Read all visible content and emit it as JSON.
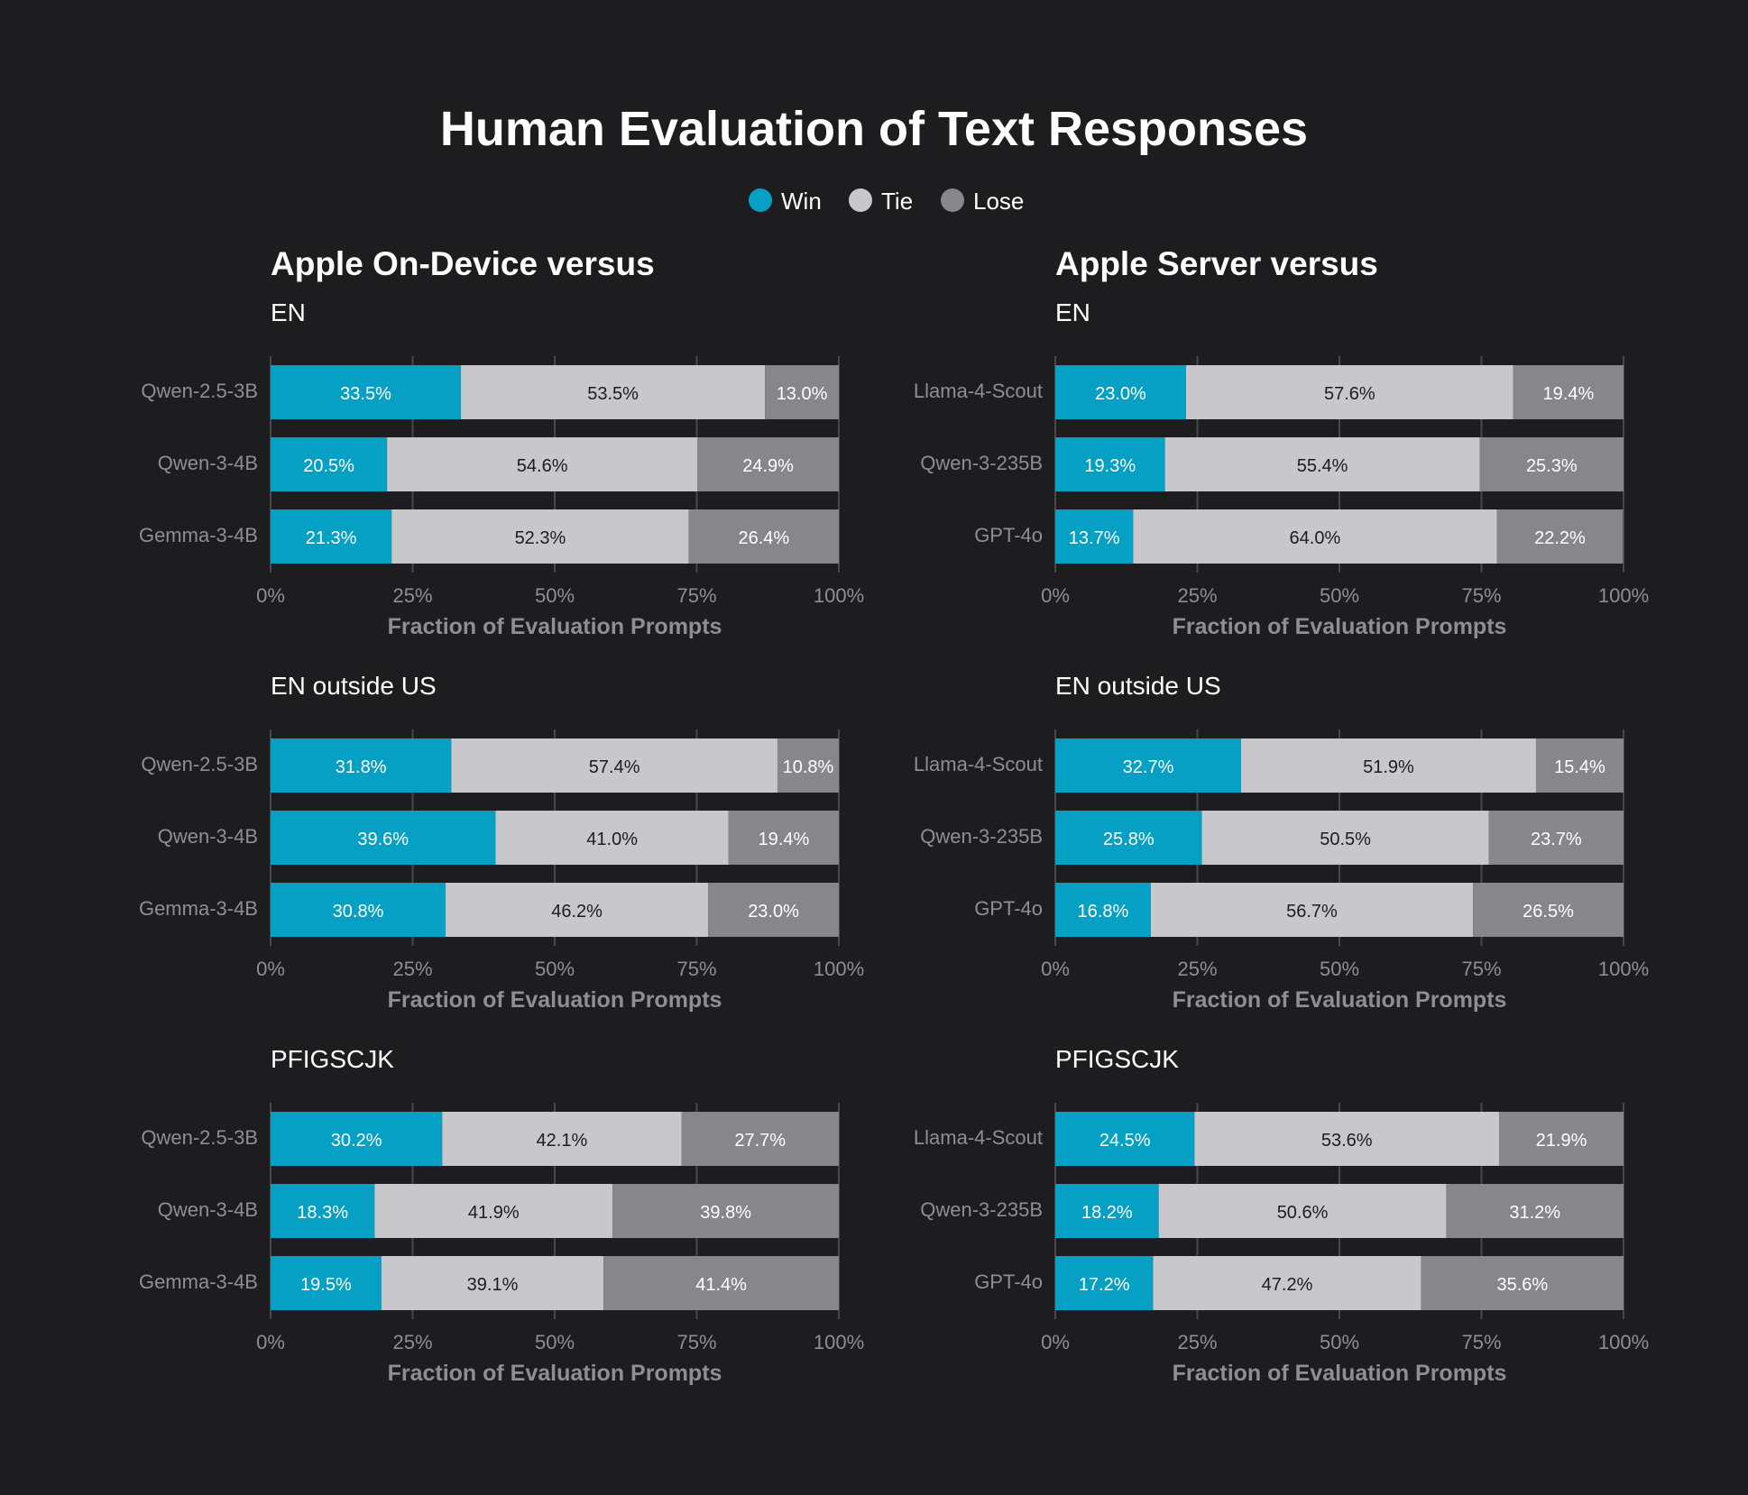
{
  "title": "Human Evaluation of Text Responses",
  "legend": [
    {
      "label": "Win",
      "color": "#06a0c4"
    },
    {
      "label": "Tie",
      "color": "#c8c8cc"
    },
    {
      "label": "Lose",
      "color": "#87878b"
    }
  ],
  "colors": {
    "background": "#1d1d1f",
    "win": "#06a0c4",
    "tie": "#c8c8cc",
    "lose": "#87878b",
    "title_text": "#ffffff",
    "axis_text": "#8e8e93",
    "grid": "#48484a"
  },
  "columns": [
    {
      "heading": "Apple On-Device versus"
    },
    {
      "heading": "Apple Server versus"
    }
  ],
  "chart_data": [
    {
      "type": "bar",
      "stacked": true,
      "orientation": "horizontal",
      "group": "Apple On-Device versus",
      "title": "EN",
      "xlabel": "Fraction of Evaluation Prompts",
      "xlim": [
        0,
        100
      ],
      "xticks": [
        "0%",
        "25%",
        "50%",
        "75%",
        "100%"
      ],
      "categories": [
        "Qwen-2.5-3B",
        "Qwen-3-4B",
        "Gemma-3-4B"
      ],
      "series": [
        {
          "name": "Win",
          "values": [
            33.5,
            20.5,
            21.3
          ]
        },
        {
          "name": "Tie",
          "values": [
            53.5,
            54.6,
            52.3
          ]
        },
        {
          "name": "Lose",
          "values": [
            13.0,
            24.9,
            26.4
          ]
        }
      ]
    },
    {
      "type": "bar",
      "stacked": true,
      "orientation": "horizontal",
      "group": "Apple Server versus",
      "title": "EN",
      "xlabel": "Fraction of Evaluation Prompts",
      "xlim": [
        0,
        100
      ],
      "xticks": [
        "0%",
        "25%",
        "50%",
        "75%",
        "100%"
      ],
      "categories": [
        "Llama-4-Scout",
        "Qwen-3-235B",
        "GPT-4o"
      ],
      "series": [
        {
          "name": "Win",
          "values": [
            23.0,
            19.3,
            13.7
          ]
        },
        {
          "name": "Tie",
          "values": [
            57.6,
            55.4,
            64.0
          ]
        },
        {
          "name": "Lose",
          "values": [
            19.4,
            25.3,
            22.2
          ]
        }
      ]
    },
    {
      "type": "bar",
      "stacked": true,
      "orientation": "horizontal",
      "group": "Apple On-Device versus",
      "title": "EN outside US",
      "xlabel": "Fraction of Evaluation Prompts",
      "xlim": [
        0,
        100
      ],
      "xticks": [
        "0%",
        "25%",
        "50%",
        "75%",
        "100%"
      ],
      "categories": [
        "Qwen-2.5-3B",
        "Qwen-3-4B",
        "Gemma-3-4B"
      ],
      "series": [
        {
          "name": "Win",
          "values": [
            31.8,
            39.6,
            30.8
          ]
        },
        {
          "name": "Tie",
          "values": [
            57.4,
            41.0,
            46.2
          ]
        },
        {
          "name": "Lose",
          "values": [
            10.8,
            19.4,
            23.0
          ]
        }
      ]
    },
    {
      "type": "bar",
      "stacked": true,
      "orientation": "horizontal",
      "group": "Apple Server versus",
      "title": "EN outside US",
      "xlabel": "Fraction of Evaluation Prompts",
      "xlim": [
        0,
        100
      ],
      "xticks": [
        "0%",
        "25%",
        "50%",
        "75%",
        "100%"
      ],
      "categories": [
        "Llama-4-Scout",
        "Qwen-3-235B",
        "GPT-4o"
      ],
      "series": [
        {
          "name": "Win",
          "values": [
            32.7,
            25.8,
            16.8
          ]
        },
        {
          "name": "Tie",
          "values": [
            51.9,
            50.5,
            56.7
          ]
        },
        {
          "name": "Lose",
          "values": [
            15.4,
            23.7,
            26.5
          ]
        }
      ]
    },
    {
      "type": "bar",
      "stacked": true,
      "orientation": "horizontal",
      "group": "Apple On-Device versus",
      "title": "PFIGSCJK",
      "xlabel": "Fraction of Evaluation Prompts",
      "xlim": [
        0,
        100
      ],
      "xticks": [
        "0%",
        "25%",
        "50%",
        "75%",
        "100%"
      ],
      "categories": [
        "Qwen-2.5-3B",
        "Qwen-3-4B",
        "Gemma-3-4B"
      ],
      "series": [
        {
          "name": "Win",
          "values": [
            30.2,
            18.3,
            19.5
          ]
        },
        {
          "name": "Tie",
          "values": [
            42.1,
            41.9,
            39.1
          ]
        },
        {
          "name": "Lose",
          "values": [
            27.7,
            39.8,
            41.4
          ]
        }
      ]
    },
    {
      "type": "bar",
      "stacked": true,
      "orientation": "horizontal",
      "group": "Apple Server versus",
      "title": "PFIGSCJK",
      "xlabel": "Fraction of Evaluation Prompts",
      "xlim": [
        0,
        100
      ],
      "xticks": [
        "0%",
        "25%",
        "50%",
        "75%",
        "100%"
      ],
      "categories": [
        "Llama-4-Scout",
        "Qwen-3-235B",
        "GPT-4o"
      ],
      "series": [
        {
          "name": "Win",
          "values": [
            24.5,
            18.2,
            17.2
          ]
        },
        {
          "name": "Tie",
          "values": [
            53.6,
            50.6,
            47.2
          ]
        },
        {
          "name": "Lose",
          "values": [
            21.9,
            31.2,
            35.6
          ]
        }
      ]
    }
  ]
}
